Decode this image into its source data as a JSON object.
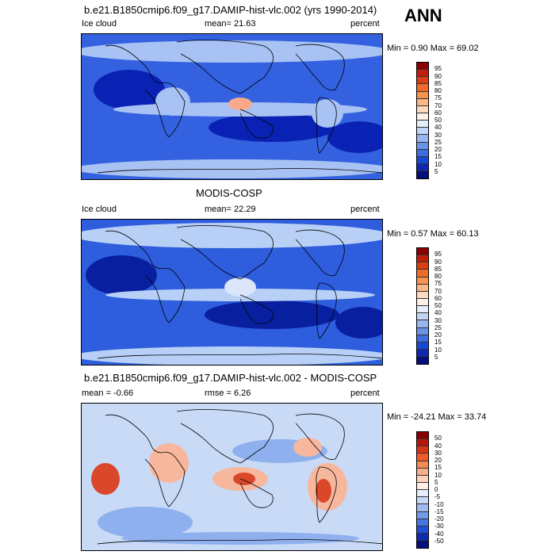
{
  "season": "ANN",
  "panels": [
    {
      "title": "b.e21.B1850cmip6.f09_g17.DAMIP-hist-vlc.002 (yrs 1990-2014)",
      "left_label": "Ice cloud",
      "center_label": "mean=  21.63",
      "right_label": "percent",
      "minmax": "Min =   0.90 Max =  69.02",
      "colorbar_labels": [
        "95",
        "90",
        "85",
        "80",
        "75",
        "70",
        "60",
        "50",
        "40",
        "30",
        "25",
        "20",
        "15",
        "10",
        "5"
      ],
      "colorbar_colors": [
        "#8b0000",
        "#c01d0a",
        "#dd3d12",
        "#f06a2a",
        "#f7944e",
        "#fbb784",
        "#fdd9bd",
        "#fdf0e6",
        "#e6eefb",
        "#c2d5f7",
        "#98b5f0",
        "#6a92e8",
        "#3d6ee0",
        "#1648d6",
        "#0e27b5",
        "#05107a"
      ],
      "map_colors": {
        "ocean": "#3361e0",
        "low": "#0a22b3",
        "high": "#a8c2f3",
        "peak": "#f7a98a"
      }
    },
    {
      "title": "MODIS-COSP",
      "left_label": "Ice cloud",
      "center_label": "mean=  22.29",
      "right_label": "percent",
      "minmax": "Min =   0.57 Max =  60.13",
      "colorbar_labels": [
        "95",
        "90",
        "85",
        "80",
        "75",
        "70",
        "60",
        "50",
        "40",
        "30",
        "25",
        "20",
        "15",
        "10",
        "5"
      ],
      "colorbar_colors": [
        "#8b0000",
        "#c01d0a",
        "#dd3d12",
        "#f06a2a",
        "#f7944e",
        "#fbb784",
        "#fdd9bd",
        "#fdf0e6",
        "#e6eefb",
        "#c2d5f7",
        "#98b5f0",
        "#6a92e8",
        "#3d6ee0",
        "#1648d6",
        "#0e27b5",
        "#05107a"
      ],
      "map_colors": {
        "ocean": "#2e5ddd",
        "low": "#08209f",
        "high": "#b8d0f6",
        "peak": "#dbe6fa"
      }
    },
    {
      "title": "b.e21.B1850cmip6.f09_g17.DAMIP-hist-vlc.002 - MODIS-COSP",
      "left_label": "mean =  -0.66",
      "center_label": "rmse =   6.26",
      "right_label": "percent",
      "minmax": "Min = -24.21 Max =  33.74",
      "colorbar_labels": [
        "50",
        "40",
        "30",
        "20",
        "15",
        "10",
        "5",
        "0",
        "-5",
        "-10",
        "-15",
        "-20",
        "-30",
        "-40",
        "-50"
      ],
      "colorbar_colors": [
        "#8b0000",
        "#b8160a",
        "#d93515",
        "#ee5a2a",
        "#f58a55",
        "#f9b08a",
        "#fcd2bd",
        "#fdeee6",
        "#e6eefb",
        "#c5d8f7",
        "#9dbaf1",
        "#739ae9",
        "#4575e0",
        "#1f50d6",
        "#0d2bb0",
        "#05107a"
      ],
      "map_colors": {
        "ocean": "#c9daf7",
        "low": "#8fb0ef",
        "high": "#f7b79c",
        "peak": "#d9482a"
      }
    }
  ]
}
